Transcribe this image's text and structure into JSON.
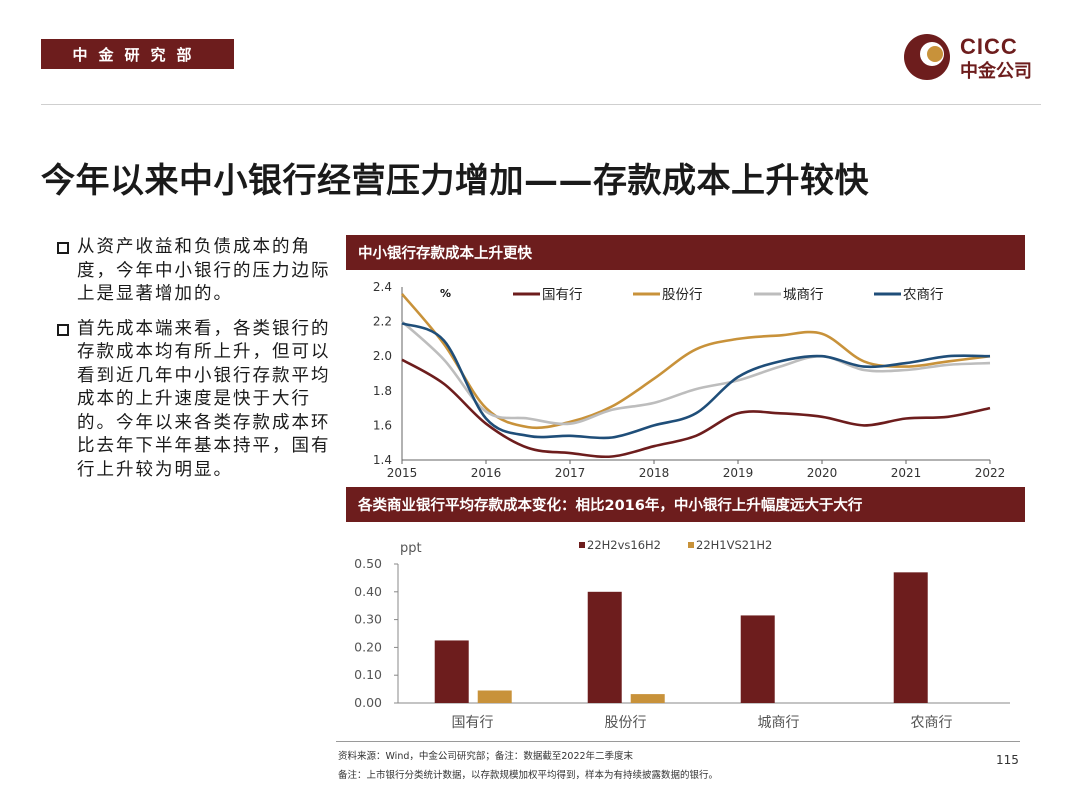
{
  "header": {
    "dept": "中金研究部",
    "logo_en": "CICC",
    "logo_cn": "中金公司"
  },
  "title": "今年以来中小银行经营压力增加——存款成本上升较快",
  "bullets": [
    "从资产收益和负债成本的角度，今年中小银行的压力边际上是显著增加的。",
    "首先成本端来看，各类银行的存款成本均有所上升，但可以看到近几年中小银行存款平均成本的上升速度是快于大行的。今年以来各类存款成本环比去年下半年基本持平，国有行上升较为明显。"
  ],
  "panel1_title": "中小银行存款成本上升更快",
  "panel2_title": "各类商业银行平均存款成本变化：相比2016年，中小银行上升幅度远大于大行",
  "colors": {
    "brand": "#6d1d1d",
    "guoyou": "#6d1d1d",
    "gufen": "#c8923a",
    "chengshang": "#bdbdbd",
    "nongshang": "#1f4e79",
    "bar2": "#c8923a"
  },
  "chart_data": [
    {
      "type": "line",
      "ylabel": "%",
      "ylim": [
        1.4,
        2.4
      ],
      "y_ticks": [
        "1.4",
        "1.6",
        "1.8",
        "2.0",
        "2.2",
        "2.4"
      ],
      "x_ticks": [
        "2015",
        "2016",
        "2017",
        "2018",
        "2019",
        "2020",
        "2021",
        "2022"
      ],
      "x": [
        2015.0,
        2015.5,
        2016.0,
        2016.5,
        2017.0,
        2017.5,
        2018.0,
        2018.5,
        2019.0,
        2019.5,
        2020.0,
        2020.5,
        2021.0,
        2021.5,
        2022.0
      ],
      "series": [
        {
          "name": "国有行",
          "color": "#6d1d1d",
          "values": [
            1.98,
            1.84,
            1.61,
            1.47,
            1.44,
            1.42,
            1.48,
            1.54,
            1.67,
            1.67,
            1.65,
            1.6,
            1.64,
            1.65,
            1.7
          ]
        },
        {
          "name": "股份行",
          "color": "#c8923a",
          "values": [
            2.36,
            2.07,
            1.7,
            1.59,
            1.62,
            1.71,
            1.87,
            2.04,
            2.1,
            2.12,
            2.13,
            1.97,
            1.94,
            1.97,
            2.0
          ]
        },
        {
          "name": "城商行",
          "color": "#bdbdbd",
          "values": [
            2.2,
            1.98,
            1.68,
            1.64,
            1.61,
            1.69,
            1.73,
            1.81,
            1.86,
            1.94,
            2.0,
            1.92,
            1.92,
            1.95,
            1.96
          ]
        },
        {
          "name": "农商行",
          "color": "#1f4e79",
          "values": [
            2.19,
            2.09,
            1.64,
            1.54,
            1.54,
            1.53,
            1.6,
            1.67,
            1.88,
            1.97,
            2.0,
            1.94,
            1.96,
            2.0,
            2.0
          ]
        }
      ]
    },
    {
      "type": "bar",
      "ylabel": "ppt",
      "ylim": [
        0,
        0.5
      ],
      "y_ticks": [
        "0.00",
        "0.10",
        "0.20",
        "0.30",
        "0.40",
        "0.50"
      ],
      "categories": [
        "国有行",
        "股份行",
        "城商行",
        "农商行"
      ],
      "series": [
        {
          "name": "22H2vs16H2",
          "color": "#6d1d1d",
          "values": [
            0.225,
            0.4,
            0.315,
            0.47
          ]
        },
        {
          "name": "22H1VS21H2",
          "color": "#c8923a",
          "values": [
            0.045,
            0.032,
            null,
            null
          ]
        }
      ]
    }
  ],
  "footer": {
    "source": "资料来源：Wind，中金公司研究部；备注：数据截至2022年二季度末",
    "note": "备注：上市银行分类统计数据，以存款规模加权平均得到，样本为有持续披露数据的银行。",
    "page": "115"
  }
}
